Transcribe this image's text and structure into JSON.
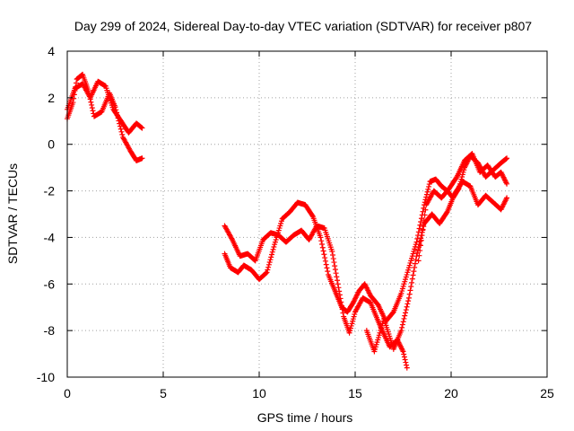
{
  "chart_data": {
    "type": "scatter",
    "title": "Day 299 of 2024, Sidereal Day-to-day VTEC variation (SDTVAR) for receiver p807",
    "xlabel": "GPS time / hours",
    "ylabel": "SDTVAR / TECUs",
    "xlim": [
      0,
      25
    ],
    "ylim": [
      -10,
      4
    ],
    "xticks": [
      "0",
      "5",
      "10",
      "15",
      "20",
      "25"
    ],
    "yticks": [
      "4",
      "2",
      "0",
      "-2",
      "-4",
      "-6",
      "-8",
      "-10"
    ],
    "grid": true,
    "marker": "plus",
    "color": "#ff0000",
    "series": [
      {
        "tracks": [
          [
            [
              0.0,
              1.1
            ],
            [
              0.3,
              1.8
            ],
            [
              0.5,
              2.8
            ],
            [
              0.8,
              3.0
            ],
            [
              1.1,
              2.3
            ],
            [
              1.4,
              1.2
            ],
            [
              1.8,
              1.4
            ],
            [
              2.2,
              2.2
            ],
            [
              2.5,
              1.6
            ],
            [
              2.9,
              0.3
            ],
            [
              3.3,
              -0.3
            ],
            [
              3.6,
              -0.7
            ],
            [
              3.9,
              -0.6
            ]
          ],
          [
            [
              0.0,
              1.5
            ],
            [
              0.4,
              2.4
            ],
            [
              0.8,
              2.6
            ],
            [
              1.2,
              2.0
            ],
            [
              1.6,
              2.7
            ],
            [
              2.0,
              2.5
            ],
            [
              2.4,
              1.5
            ],
            [
              2.8,
              1.0
            ],
            [
              3.2,
              0.5
            ],
            [
              3.6,
              0.9
            ],
            [
              3.9,
              0.7
            ]
          ],
          [
            [
              8.2,
              -4.7
            ],
            [
              8.5,
              -5.3
            ],
            [
              8.9,
              -5.5
            ],
            [
              9.2,
              -5.2
            ],
            [
              9.6,
              -5.4
            ],
            [
              10.0,
              -5.8
            ],
            [
              10.4,
              -5.5
            ],
            [
              10.8,
              -4.3
            ],
            [
              11.2,
              -3.2
            ],
            [
              11.6,
              -2.9
            ],
            [
              12.0,
              -2.5
            ],
            [
              12.4,
              -2.6
            ],
            [
              12.8,
              -3.1
            ],
            [
              13.2,
              -4.0
            ],
            [
              13.6,
              -5.6
            ],
            [
              14.0,
              -6.4
            ],
            [
              14.3,
              -7.0
            ],
            [
              14.6,
              -7.2
            ],
            [
              14.9,
              -6.8
            ],
            [
              15.2,
              -6.3
            ],
            [
              15.5,
              -6.0
            ],
            [
              15.8,
              -6.5
            ],
            [
              16.2,
              -6.9
            ],
            [
              16.6,
              -7.6
            ],
            [
              17.0,
              -7.2
            ],
            [
              17.4,
              -6.4
            ],
            [
              17.8,
              -5.3
            ],
            [
              18.2,
              -4.2
            ],
            [
              18.6,
              -2.6
            ],
            [
              18.9,
              -1.6
            ],
            [
              19.2,
              -1.5
            ],
            [
              19.5,
              -1.8
            ],
            [
              19.8,
              -2.0
            ],
            [
              20.1,
              -2.3
            ],
            [
              20.4,
              -1.9
            ],
            [
              20.7,
              -1.0
            ],
            [
              21.0,
              -0.5
            ],
            [
              21.4,
              -0.8
            ],
            [
              21.8,
              -1.4
            ],
            [
              22.2,
              -1.1
            ],
            [
              22.6,
              -0.8
            ],
            [
              22.9,
              -0.6
            ]
          ],
          [
            [
              8.2,
              -3.5
            ],
            [
              8.6,
              -4.1
            ],
            [
              9.0,
              -4.8
            ],
            [
              9.4,
              -4.7
            ],
            [
              9.8,
              -5.0
            ],
            [
              10.2,
              -4.1
            ],
            [
              10.6,
              -3.8
            ],
            [
              11.0,
              -3.9
            ],
            [
              11.4,
              -4.2
            ],
            [
              11.8,
              -3.9
            ],
            [
              12.2,
              -3.7
            ],
            [
              12.6,
              -4.1
            ],
            [
              13.0,
              -3.5
            ],
            [
              13.4,
              -3.6
            ],
            [
              13.8,
              -4.6
            ],
            [
              14.1,
              -6.0
            ],
            [
              14.4,
              -7.4
            ],
            [
              14.7,
              -8.1
            ],
            [
              15.0,
              -7.2
            ],
            [
              15.4,
              -6.6
            ],
            [
              15.8,
              -6.8
            ],
            [
              16.3,
              -7.8
            ],
            [
              16.8,
              -8.7
            ],
            [
              17.2,
              -8.4
            ],
            [
              17.5,
              -8.9
            ],
            [
              17.7,
              -9.6
            ]
          ],
          [
            [
              15.6,
              -8.0
            ],
            [
              16.0,
              -8.9
            ],
            [
              16.5,
              -7.5
            ],
            [
              17.0,
              -8.8
            ],
            [
              17.4,
              -8.0
            ],
            [
              17.8,
              -6.6
            ],
            [
              18.2,
              -4.8
            ],
            [
              18.6,
              -3.4
            ],
            [
              19.0,
              -3.0
            ],
            [
              19.4,
              -3.4
            ],
            [
              19.8,
              -2.9
            ],
            [
              20.2,
              -2.1
            ],
            [
              20.6,
              -1.6
            ],
            [
              21.0,
              -1.8
            ],
            [
              21.4,
              -2.6
            ],
            [
              21.8,
              -2.2
            ],
            [
              22.2,
              -2.5
            ],
            [
              22.6,
              -2.8
            ],
            [
              22.9,
              -2.3
            ]
          ],
          [
            [
              18.3,
              -5.0
            ],
            [
              18.7,
              -2.6
            ],
            [
              19.1,
              -2.0
            ],
            [
              19.5,
              -2.3
            ],
            [
              19.9,
              -1.9
            ],
            [
              20.3,
              -1.4
            ],
            [
              20.7,
              -0.7
            ],
            [
              21.1,
              -0.4
            ],
            [
              21.5,
              -1.2
            ],
            [
              21.9,
              -0.9
            ],
            [
              22.3,
              -1.4
            ],
            [
              22.6,
              -1.2
            ],
            [
              22.9,
              -1.7
            ]
          ]
        ]
      }
    ]
  }
}
